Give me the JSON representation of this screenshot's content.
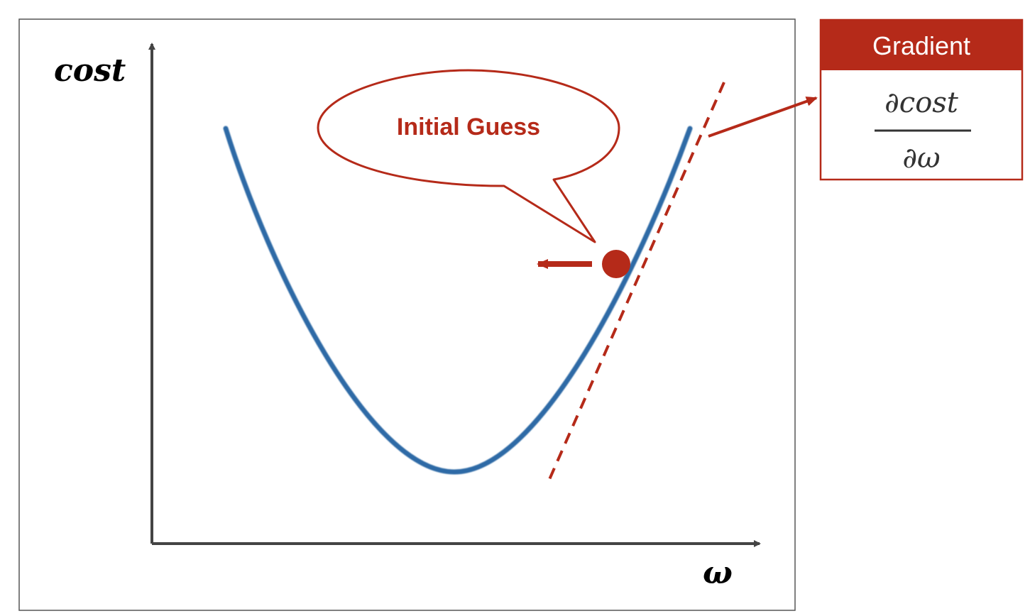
{
  "axes": {
    "y_label": "cost",
    "x_label": "ω"
  },
  "callout": {
    "text": "Initial Guess"
  },
  "gradient_box": {
    "title": "Gradient",
    "numerator": "∂cost",
    "denominator": "∂ω"
  },
  "colors": {
    "curve": "#2e6aa6",
    "accent": "#b52a19",
    "axis": "#444444",
    "frame": "#555555"
  }
}
